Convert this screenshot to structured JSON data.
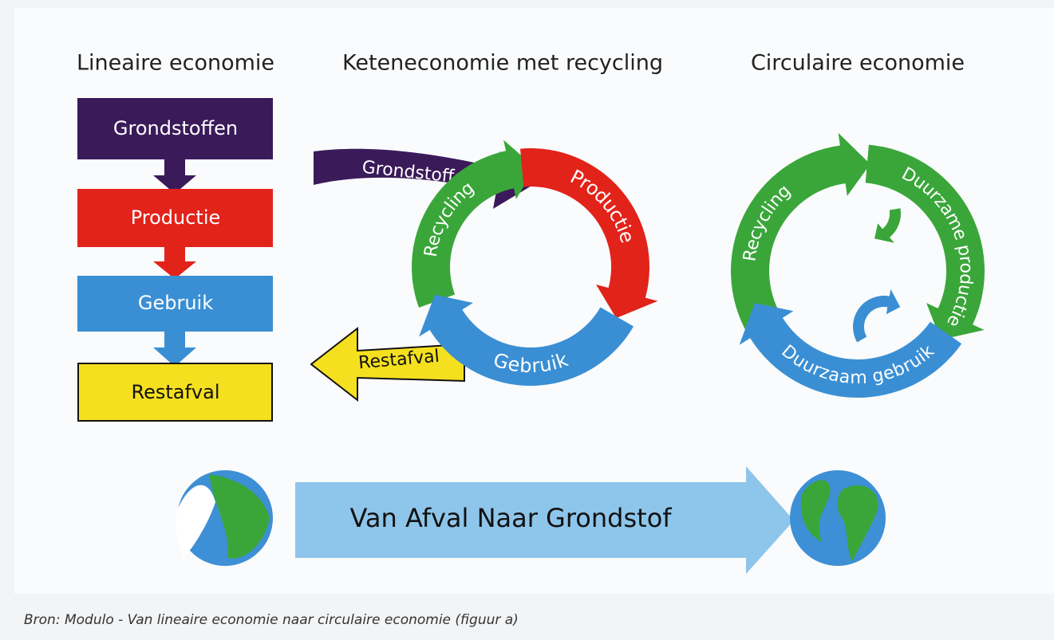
{
  "linear": {
    "title": "Lineaire economie",
    "steps": [
      "Grondstoffen",
      "Productie",
      "Gebruik",
      "Restafval"
    ]
  },
  "chain": {
    "title": "Keteneconomie met recycling",
    "labels": {
      "input": "Grondstoffen",
      "production": "Productie",
      "use": "Gebruik",
      "recycling": "Recycling",
      "waste": "Restafval"
    }
  },
  "circular": {
    "title": "Circulaire economie",
    "labels": {
      "recycling": "Recycling",
      "production": "Duurzame productie",
      "use": "Duurzaam gebruik"
    }
  },
  "transition": "Van Afval Naar Grondstof",
  "caption": "Bron: Modulo - Van lineaire economie naar circulaire economie (figuur a)"
}
